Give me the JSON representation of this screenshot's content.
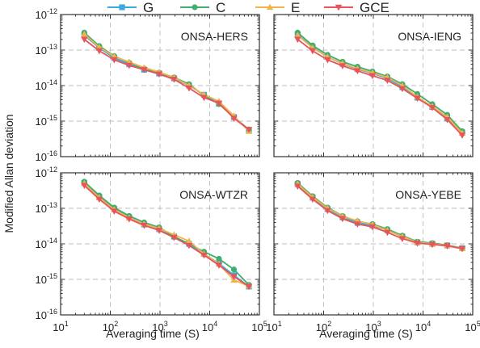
{
  "chart_data": {
    "type": "line",
    "legend": {
      "placement": "top-center",
      "entries": [
        {
          "name": "G",
          "color": "#3aa9e0",
          "marker": "square"
        },
        {
          "name": "C",
          "color": "#3fae6e",
          "marker": "circle"
        },
        {
          "name": "E",
          "color": "#f2b24c",
          "marker": "triangle-up"
        },
        {
          "name": "GCE",
          "color": "#e8545b",
          "marker": "triangle-down"
        }
      ]
    },
    "xlabel": "Averaging time (S)",
    "ylabel": "Modified Allan deviation",
    "xscale": "log",
    "yscale": "log",
    "xlim": [
      10,
      100000
    ],
    "ylim": [
      1e-16,
      1e-12
    ],
    "xticks": [
      {
        "value": 10,
        "base": "10",
        "exp": "1"
      },
      {
        "value": 100,
        "base": "10",
        "exp": "2"
      },
      {
        "value": 1000,
        "base": "10",
        "exp": "3"
      },
      {
        "value": 10000,
        "base": "10",
        "exp": "4"
      },
      {
        "value": 100000,
        "base": "10",
        "exp": "5"
      }
    ],
    "yticks": [
      {
        "value": 1e-12,
        "base": "10",
        "exp": "-12"
      },
      {
        "value": 1e-13,
        "base": "10",
        "exp": "-13"
      },
      {
        "value": 1e-14,
        "base": "10",
        "exp": "-14"
      },
      {
        "value": 1e-15,
        "base": "10",
        "exp": "-15"
      },
      {
        "value": 1e-16,
        "base": "10",
        "exp": "-16"
      }
    ],
    "grid": true,
    "x": [
      30,
      60,
      120,
      240,
      480,
      960,
      1920,
      3840,
      7680,
      15360,
      30720,
      61440
    ],
    "panels": [
      {
        "title": "ONSA-HERS",
        "series": [
          {
            "name": "G",
            "values": [
              2.6e-13,
              1.15e-13,
              6e-14,
              4e-14,
              2.8e-14,
              2.2e-14,
              1.6e-14,
              1e-14,
              5.5e-15,
              3.1e-15,
              1.3e-15,
              5.6e-16
            ]
          },
          {
            "name": "C",
            "values": [
              3.1e-13,
              1.3e-13,
              6.8e-14,
              4.4e-14,
              3e-14,
              2.3e-14,
              1.7e-14,
              1.1e-14,
              5.2e-15,
              3e-15,
              1.3e-15,
              5.8e-16
            ]
          },
          {
            "name": "E",
            "values": [
              2.8e-13,
              1.2e-13,
              6.6e-14,
              4.6e-14,
              3.2e-14,
              2.4e-14,
              1.7e-14,
              1e-14,
              5.6e-15,
              3.6e-15,
              1.4e-15,
              5.2e-16
            ]
          },
          {
            "name": "GCE",
            "values": [
              2e-13,
              9.5e-14,
              5.3e-14,
              3.7e-14,
              2.8e-14,
              2.1e-14,
              1.5e-14,
              8.5e-15,
              4.6e-15,
              3.2e-15,
              1.2e-15,
              5.8e-16
            ]
          }
        ]
      },
      {
        "title": "ONSA-IENG",
        "series": [
          {
            "name": "G",
            "values": [
              2.7e-13,
              1.2e-13,
              6.4e-14,
              4.1e-14,
              2.9e-14,
              2.2e-14,
              1.6e-14,
              9e-15,
              4.6e-15,
              2.5e-15,
              1.2e-15,
              4.8e-16
            ]
          },
          {
            "name": "C",
            "values": [
              3.1e-13,
              1.35e-13,
              7.3e-14,
              4.7e-14,
              3.4e-14,
              2.5e-14,
              1.8e-14,
              1.1e-14,
              5.8e-15,
              3e-15,
              1.5e-15,
              5.2e-16
            ]
          },
          {
            "name": "E",
            "values": [
              2.6e-13,
              1.15e-13,
              6.4e-14,
              4.2e-14,
              3e-14,
              2.3e-14,
              1.7e-14,
              1e-14,
              4.8e-15,
              2.6e-15,
              1.3e-15,
              4.6e-16
            ]
          },
          {
            "name": "GCE",
            "values": [
              2e-13,
              9.5e-14,
              5.3e-14,
              3.6e-14,
              2.6e-14,
              1.9e-14,
              1.4e-14,
              8.2e-15,
              4.4e-15,
              2.4e-15,
              1.1e-15,
              4e-16
            ]
          }
        ]
      },
      {
        "title": "ONSA-WTZR",
        "series": [
          {
            "name": "G",
            "values": [
              5.2e-13,
              2.1e-13,
              9.5e-14,
              5.5e-14,
              3.5e-14,
              2.6e-14,
              1.6e-14,
              1e-14,
              5.2e-15,
              2.8e-15,
              1.3e-15,
              6.3e-16
            ]
          },
          {
            "name": "C",
            "values": [
              5.6e-13,
              2.3e-13,
              1.05e-13,
              6.1e-14,
              4e-14,
              2.9e-14,
              1.6e-14,
              1e-14,
              6e-15,
              3.8e-15,
              1.9e-15,
              7e-16
            ]
          },
          {
            "name": "E",
            "values": [
              5e-13,
              2e-13,
              9.2e-14,
              5.4e-14,
              3.6e-14,
              2.7e-14,
              1.8e-14,
              1.2e-14,
              5.2e-15,
              2.7e-15,
              9.5e-16,
              6.5e-16
            ]
          },
          {
            "name": "GCE",
            "values": [
              4.4e-13,
              1.8e-13,
              8.3e-14,
              5e-14,
              3.3e-14,
              2.4e-14,
              1.5e-14,
              9e-15,
              4.8e-15,
              2.5e-15,
              1.2e-15,
              6.3e-16
            ]
          }
        ]
      },
      {
        "title": "ONSA-YEBE",
        "series": [
          {
            "name": "G",
            "values": [
              4.8e-13,
              2e-13,
              9.5e-14,
              5.6e-14,
              3.9e-14,
              3.3e-14,
              2.4e-14,
              1.6e-14,
              1.1e-14,
              1e-14,
              9e-15,
              7.5e-15
            ]
          },
          {
            "name": "C",
            "values": [
              5.2e-13,
              2.2e-13,
              1.05e-13,
              6.1e-14,
              4.3e-14,
              3.6e-14,
              2.6e-14,
              1.7e-14,
              1.15e-14,
              1.05e-14,
              9.2e-15,
              7.6e-15
            ]
          },
          {
            "name": "E",
            "values": [
              4.9e-13,
              2.05e-13,
              1e-13,
              6e-14,
              4.4e-14,
              3.5e-14,
              2.4e-14,
              1.6e-14,
              1.1e-14,
              1e-14,
              9e-15,
              7.4e-15
            ]
          },
          {
            "name": "GCE",
            "values": [
              4.2e-13,
              1.8e-13,
              8.6e-14,
              5.1e-14,
              3.6e-14,
              3e-14,
              2.1e-14,
              1.4e-14,
              1.05e-14,
              9.6e-15,
              8.8e-15,
              7.3e-15
            ]
          }
        ]
      }
    ]
  }
}
